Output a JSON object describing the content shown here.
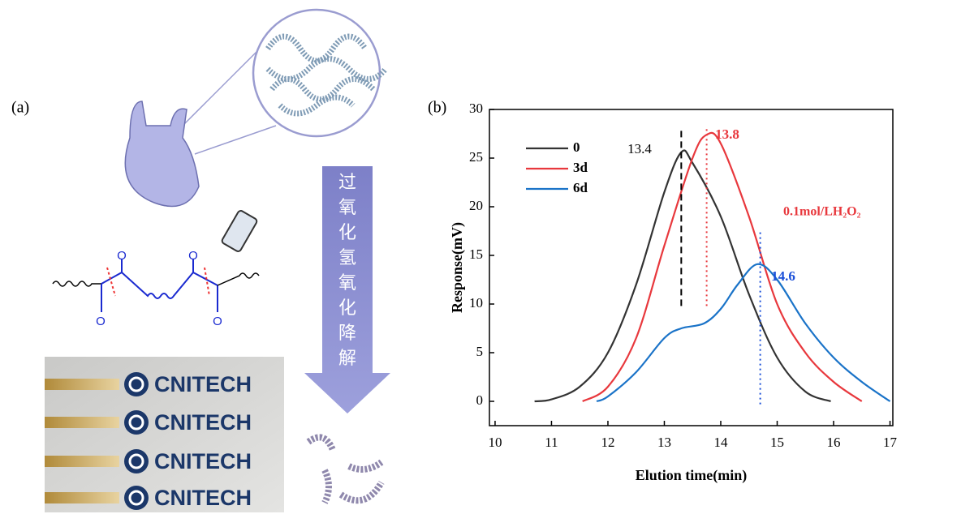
{
  "panel_a": {
    "label": "(a)",
    "arrow_text": [
      "过",
      "氧",
      "化",
      "氢",
      "氧",
      "化",
      "降",
      "解"
    ],
    "atoms": [
      "O",
      "O",
      "O",
      "O"
    ],
    "strips": [
      "CNITECH",
      "CNITECH",
      "CNITECH",
      "CNITECH"
    ]
  },
  "chart_data": {
    "type": "line",
    "panel_label": "(b)",
    "xlabel": "Elution time(min)",
    "ylabel": "Response(mV)",
    "xlim": [
      9.9,
      17.05
    ],
    "ylim": [
      -2.5,
      30
    ],
    "xticks": [
      10,
      11,
      12,
      13,
      14,
      15,
      16,
      17
    ],
    "yticks": [
      0,
      5,
      10,
      15,
      20,
      25,
      30
    ],
    "series": [
      {
        "name": "0",
        "color": "#333333",
        "x": [
          10.7,
          11,
          11.5,
          12,
          12.5,
          13,
          13.3,
          13.5,
          14,
          14.5,
          15,
          15.5,
          15.95
        ],
        "values": [
          0,
          0.2,
          1.5,
          5,
          12,
          21.5,
          25.6,
          24.5,
          19,
          11,
          4.5,
          1,
          0
        ]
      },
      {
        "name": "3d",
        "color": "#e8383d",
        "x": [
          11.55,
          12,
          12.5,
          13,
          13.5,
          13.75,
          14,
          14.5,
          15,
          15.5,
          16,
          16.5
        ],
        "values": [
          0,
          1.5,
          6.5,
          16,
          25,
          27.4,
          26.5,
          19,
          10,
          5,
          2,
          0
        ]
      },
      {
        "name": "6d",
        "color": "#1a73c8",
        "x": [
          11.8,
          12,
          12.5,
          13,
          13.3,
          13.7,
          14,
          14.3,
          14.65,
          15,
          15.5,
          16,
          16.5,
          17
        ],
        "values": [
          0,
          0.5,
          3,
          6.5,
          7.5,
          8,
          9.5,
          12,
          14.1,
          12.5,
          8,
          4.5,
          2,
          0
        ]
      }
    ],
    "peaks": [
      {
        "x": 13.3,
        "text": "13.4",
        "color": "#000000",
        "style": "dashed"
      },
      {
        "x": 13.75,
        "text": "13.8",
        "color": "#e8383d",
        "style": "dotted"
      },
      {
        "x": 14.7,
        "text": "14.6",
        "color": "#1a4fd8",
        "style": "dotted"
      }
    ],
    "note": {
      "text": "0.1mol/LH₂O₂",
      "color": "#e8383d"
    },
    "legend": "upper-left"
  }
}
